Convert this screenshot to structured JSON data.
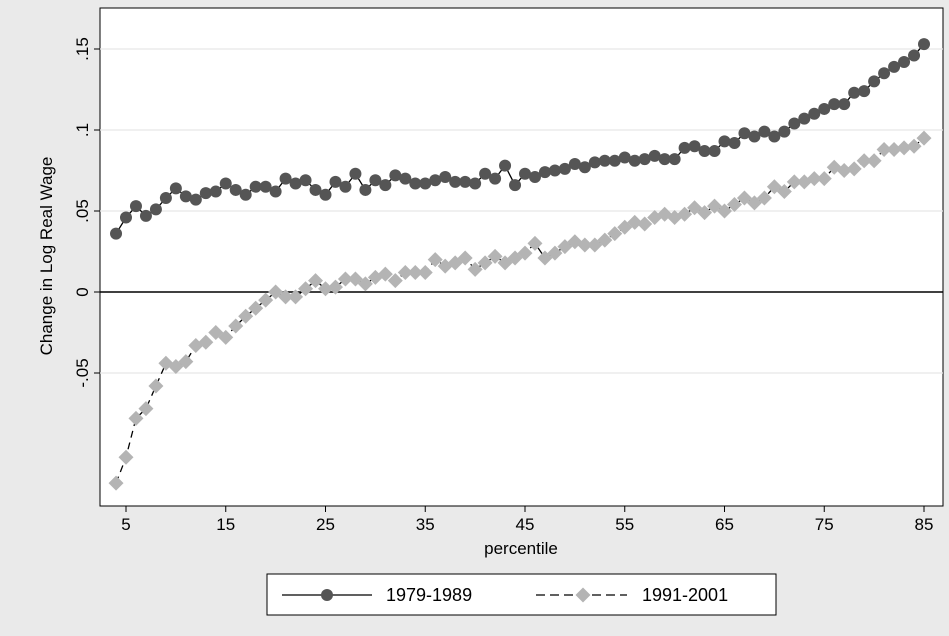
{
  "chart_data": {
    "type": "line",
    "title": "",
    "xlabel": "percentile",
    "ylabel": "Change in Log Real Wage",
    "xlim": [
      4,
      85
    ],
    "ylim": [
      -0.12,
      0.16
    ],
    "x_ticks": [
      5,
      15,
      25,
      35,
      45,
      55,
      65,
      75,
      85
    ],
    "x_tick_labels": [
      "5",
      "15",
      "25",
      "35",
      "45",
      "55",
      "65",
      "75",
      "85"
    ],
    "y_ticks": [
      0.15,
      0.1,
      0.05,
      0,
      -0.05
    ],
    "y_tick_labels": [
      ".15",
      ".1",
      ".05",
      "0",
      "-.05"
    ],
    "reference_line_y": 0,
    "grid": true,
    "legend_position": "bottom",
    "x": [
      4,
      5,
      6,
      7,
      8,
      9,
      10,
      11,
      12,
      13,
      14,
      15,
      16,
      17,
      18,
      19,
      20,
      21,
      22,
      23,
      24,
      25,
      26,
      27,
      28,
      29,
      30,
      31,
      32,
      33,
      34,
      35,
      36,
      37,
      38,
      39,
      40,
      41,
      42,
      43,
      44,
      45,
      46,
      47,
      48,
      49,
      50,
      51,
      52,
      53,
      54,
      55,
      56,
      57,
      58,
      59,
      60,
      61,
      62,
      63,
      64,
      65,
      66,
      67,
      68,
      69,
      70,
      71,
      72,
      73,
      74,
      75,
      76,
      77,
      78,
      79,
      80,
      81,
      82,
      83,
      84,
      85
    ],
    "series": [
      {
        "name": "1979-1989",
        "color": "#555555",
        "marker": "circle",
        "line_style": "solid",
        "values": [
          0.036,
          0.046,
          0.053,
          0.047,
          0.051,
          0.058,
          0.064,
          0.059,
          0.057,
          0.061,
          0.062,
          0.067,
          0.063,
          0.06,
          0.065,
          0.065,
          0.062,
          0.07,
          0.067,
          0.069,
          0.063,
          0.06,
          0.068,
          0.065,
          0.073,
          0.063,
          0.069,
          0.066,
          0.072,
          0.07,
          0.067,
          0.067,
          0.069,
          0.071,
          0.068,
          0.068,
          0.067,
          0.073,
          0.07,
          0.078,
          0.066,
          0.073,
          0.071,
          0.074,
          0.075,
          0.076,
          0.079,
          0.077,
          0.08,
          0.081,
          0.081,
          0.083,
          0.081,
          0.082,
          0.084,
          0.082,
          0.082,
          0.089,
          0.09,
          0.087,
          0.087,
          0.093,
          0.092,
          0.098,
          0.096,
          0.099,
          0.096,
          0.099,
          0.104,
          0.107,
          0.11,
          0.113,
          0.116,
          0.116,
          0.123,
          0.124,
          0.13,
          0.135,
          0.139,
          0.142,
          0.146,
          0.153
        ]
      },
      {
        "name": "1991-2001",
        "color": "#b4b4b4",
        "marker": "diamond",
        "line_style": "dashed",
        "values": [
          -0.118,
          -0.102,
          -0.078,
          -0.072,
          -0.058,
          -0.044,
          -0.046,
          -0.043,
          -0.033,
          -0.031,
          -0.025,
          -0.028,
          -0.021,
          -0.015,
          -0.01,
          -0.005,
          0.0,
          -0.003,
          -0.003,
          0.002,
          0.007,
          0.002,
          0.003,
          0.008,
          0.008,
          0.005,
          0.009,
          0.011,
          0.007,
          0.012,
          0.012,
          0.012,
          0.02,
          0.016,
          0.018,
          0.021,
          0.014,
          0.018,
          0.022,
          0.018,
          0.021,
          0.024,
          0.03,
          0.021,
          0.024,
          0.028,
          0.031,
          0.029,
          0.029,
          0.032,
          0.036,
          0.04,
          0.043,
          0.042,
          0.046,
          0.048,
          0.046,
          0.048,
          0.052,
          0.049,
          0.053,
          0.05,
          0.054,
          0.058,
          0.055,
          0.058,
          0.065,
          0.062,
          0.068,
          0.068,
          0.07,
          0.07,
          0.077,
          0.075,
          0.076,
          0.081,
          0.081,
          0.088,
          0.088,
          0.089,
          0.09,
          0.095
        ]
      }
    ]
  }
}
